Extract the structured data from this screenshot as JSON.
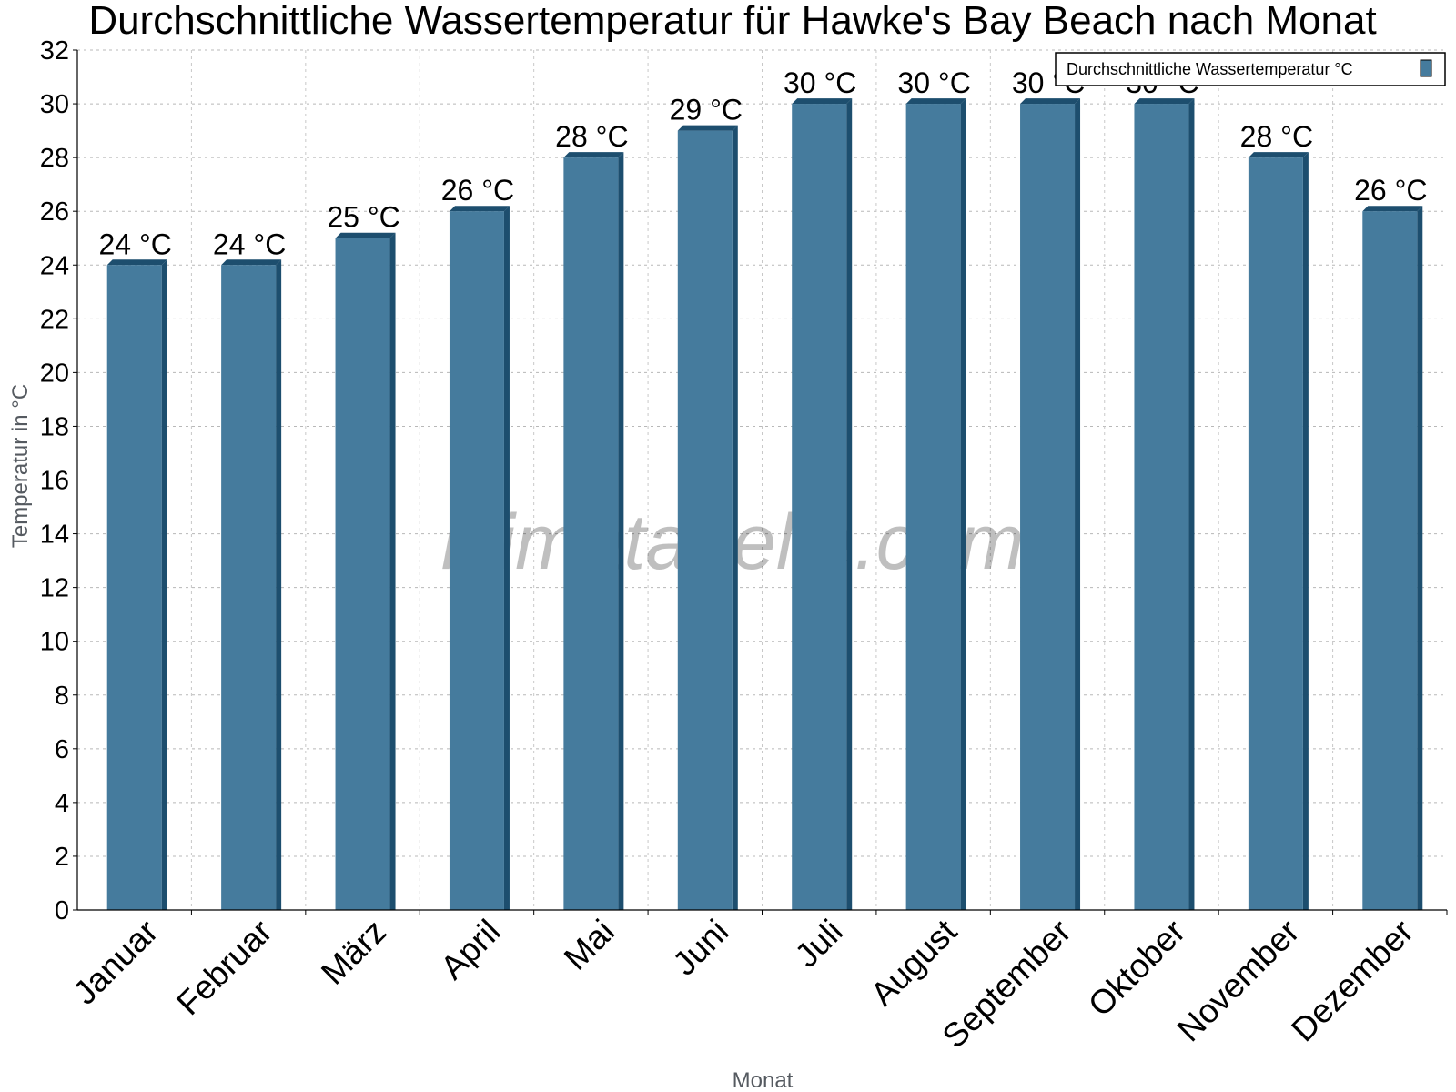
{
  "chart_data": {
    "type": "bar",
    "title": "Durchschnittliche Wassertemperatur für Hawke's Bay Beach nach Monat",
    "xlabel": "Monat",
    "ylabel": "Temperatur in °C",
    "categories": [
      "Januar",
      "Februar",
      "März",
      "April",
      "Mai",
      "Juni",
      "Juli",
      "August",
      "September",
      "Oktober",
      "November",
      "Dezember"
    ],
    "series": [
      {
        "name": "Durchschnittliche Wassertemperatur °C",
        "values": [
          24,
          24,
          25,
          26,
          28,
          29,
          30,
          30,
          30,
          30,
          28,
          26
        ],
        "labels": [
          "24 °C",
          "24 °C",
          "25 °C",
          "26 °C",
          "28 °C",
          "29 °C",
          "30 °C",
          "30 °C",
          "30 °C",
          "30 °C",
          "28 °C",
          "26 °C"
        ]
      }
    ],
    "ylim": [
      0,
      32
    ],
    "yticks": [
      0,
      2,
      4,
      6,
      8,
      10,
      12,
      14,
      16,
      18,
      20,
      22,
      24,
      26,
      28,
      30,
      32
    ],
    "grid": true,
    "legend_position": "top-right",
    "watermark": "klimatabelle.com",
    "colors": {
      "bar": "#457b9d",
      "bar_dark": "#1d4e6e"
    }
  }
}
